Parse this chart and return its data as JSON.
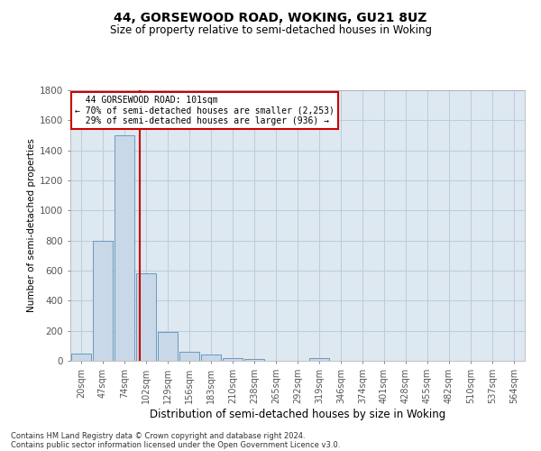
{
  "title1": "44, GORSEWOOD ROAD, WOKING, GU21 8UZ",
  "title2": "Size of property relative to semi-detached houses in Woking",
  "xlabel": "Distribution of semi-detached houses by size in Woking",
  "ylabel": "Number of semi-detached properties",
  "footer1": "Contains HM Land Registry data © Crown copyright and database right 2024.",
  "footer2": "Contains public sector information licensed under the Open Government Licence v3.0.",
  "property_label": "44 GORSEWOOD ROAD: 101sqm",
  "pct_smaller": 70,
  "n_smaller": 2253,
  "pct_larger": 29,
  "n_larger": 936,
  "bin_labels": [
    "20sqm",
    "47sqm",
    "74sqm",
    "102sqm",
    "129sqm",
    "156sqm",
    "183sqm",
    "210sqm",
    "238sqm",
    "265sqm",
    "292sqm",
    "319sqm",
    "346sqm",
    "374sqm",
    "401sqm",
    "428sqm",
    "455sqm",
    "482sqm",
    "510sqm",
    "537sqm",
    "564sqm"
  ],
  "bar_values": [
    50,
    800,
    1500,
    580,
    195,
    60,
    40,
    20,
    15,
    0,
    0,
    20,
    0,
    0,
    0,
    0,
    0,
    0,
    0,
    0,
    0
  ],
  "bar_color": "#c8d8e8",
  "bar_edge_color": "#5b8db8",
  "vline_color": "#cc0000",
  "vline_position": 2.72,
  "ylim": [
    0,
    1800
  ],
  "yticks": [
    0,
    200,
    400,
    600,
    800,
    1000,
    1200,
    1400,
    1600,
    1800
  ],
  "grid_color": "#bbccdd",
  "box_color": "#cc0000",
  "bg_color": "#dde8f0"
}
